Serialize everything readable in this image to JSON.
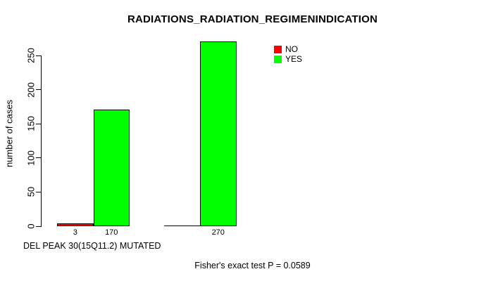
{
  "chart_data": {
    "type": "bar",
    "title": "RADIATIONS_RADIATION_REGIMENINDICATION",
    "ylabel": "number of cases",
    "xlabel": "DEL PEAK 30(15Q11.2) MUTATED",
    "annotation": "Fisher's exact test P = 0.0589",
    "yticks": [
      0,
      50,
      100,
      150,
      200,
      250
    ],
    "ylim": [
      0,
      272
    ],
    "grid": false,
    "legend_position": "top-right",
    "bar_border_color": "#000000",
    "background_color": "#ffffff",
    "series": [
      {
        "name": "NO",
        "color": "#ff0000",
        "values": [
          3,
          0
        ]
      },
      {
        "name": "YES",
        "color": "#00ff00",
        "values": [
          170,
          270
        ]
      }
    ]
  }
}
